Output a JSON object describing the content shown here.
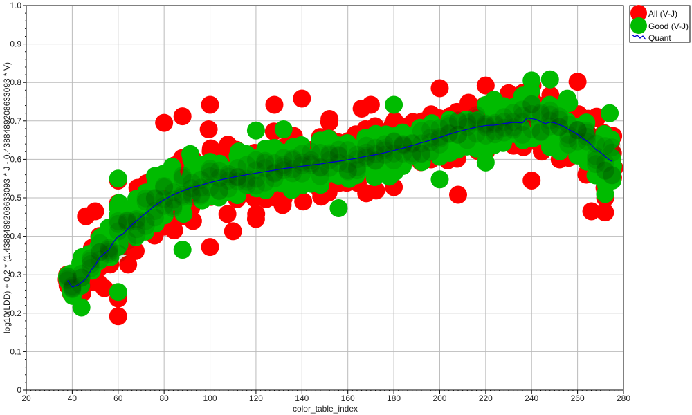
{
  "chart_data": {
    "type": "scatter",
    "xlabel": "color_table_index",
    "ylabel": "log10(LDD) + 0.2 * (1.4388489208633093 * J - 0.4388489208633093 * V)",
    "xlim": [
      20,
      280
    ],
    "ylim": [
      0,
      1
    ],
    "x_ticks": [
      20,
      40,
      60,
      80,
      100,
      120,
      140,
      160,
      180,
      200,
      220,
      240,
      260,
      280
    ],
    "y_ticks": [
      0,
      0.1,
      0.2,
      0.3,
      0.4,
      0.5,
      0.6,
      0.7,
      0.8,
      0.9,
      1.0
    ],
    "x_tick_labels": [
      "20",
      "40",
      "60",
      "80",
      "100",
      "120",
      "140",
      "160",
      "180",
      "200",
      "220",
      "240",
      "260",
      "280"
    ],
    "y_tick_labels": [
      "0",
      "0.1",
      "0.2",
      "0.3",
      "0.4",
      "0.5",
      "0.6",
      "0.7",
      "0.8",
      "0.9",
      "1.0"
    ],
    "grid": true,
    "legend_position": "outside-top-right",
    "colors": {
      "all": "#ff0000",
      "good": "#00bb00",
      "quant": "#0000cc",
      "grid": "#bbbbbb"
    },
    "series": [
      {
        "name": "All (V-J)",
        "marker": "circle",
        "color": "#ff0000",
        "band_centers": {
          "x": [
            38,
            40,
            44,
            48,
            52,
            56,
            60,
            64,
            68,
            72,
            76,
            80,
            84,
            88,
            92,
            96,
            100,
            104,
            108,
            112,
            116,
            120,
            124,
            128,
            132,
            136,
            140,
            144,
            148,
            152,
            156,
            160,
            164,
            168,
            172,
            176,
            180,
            184,
            188,
            192,
            196,
            200,
            204,
            208,
            212,
            216,
            220,
            224,
            228,
            232,
            236,
            240,
            244,
            248,
            252,
            256,
            260,
            264,
            268,
            272,
            275
          ],
          "y": [
            0.285,
            0.27,
            0.29,
            0.32,
            0.355,
            0.375,
            0.4,
            0.415,
            0.44,
            0.46,
            0.48,
            0.495,
            0.51,
            0.52,
            0.53,
            0.535,
            0.54,
            0.548,
            0.553,
            0.558,
            0.562,
            0.565,
            0.57,
            0.573,
            0.576,
            0.579,
            0.582,
            0.585,
            0.588,
            0.592,
            0.595,
            0.599,
            0.603,
            0.608,
            0.612,
            0.617,
            0.622,
            0.628,
            0.635,
            0.642,
            0.65,
            0.657,
            0.665,
            0.672,
            0.678,
            0.684,
            0.688,
            0.69,
            0.694,
            0.697,
            0.7,
            0.705,
            0.7,
            0.695,
            0.69,
            0.675,
            0.66,
            0.645,
            0.625,
            0.605,
            0.595
          ],
          "spread": [
            0.03,
            0.06,
            0.08,
            0.09,
            0.1,
            0.11,
            0.13,
            0.13,
            0.13,
            0.13,
            0.13,
            0.14,
            0.14,
            0.14,
            0.14,
            0.15,
            0.15,
            0.13,
            0.13,
            0.12,
            0.12,
            0.12,
            0.12,
            0.13,
            0.12,
            0.12,
            0.12,
            0.12,
            0.12,
            0.12,
            0.11,
            0.11,
            0.11,
            0.11,
            0.11,
            0.11,
            0.1,
            0.1,
            0.1,
            0.1,
            0.1,
            0.1,
            0.1,
            0.1,
            0.1,
            0.1,
            0.1,
            0.1,
            0.1,
            0.1,
            0.12,
            0.13,
            0.13,
            0.13,
            0.13,
            0.14,
            0.14,
            0.14,
            0.13,
            0.13,
            0.12
          ]
        },
        "outliers": [
          {
            "x": 60,
            "y": 0.192
          },
          {
            "x": 60,
            "y": 0.238
          },
          {
            "x": 60,
            "y": 0.545
          },
          {
            "x": 54,
            "y": 0.265
          },
          {
            "x": 80,
            "y": 0.695
          },
          {
            "x": 88,
            "y": 0.712
          },
          {
            "x": 100,
            "y": 0.742
          },
          {
            "x": 100,
            "y": 0.372
          },
          {
            "x": 110,
            "y": 0.413
          },
          {
            "x": 120,
            "y": 0.445
          },
          {
            "x": 128,
            "y": 0.742
          },
          {
            "x": 140,
            "y": 0.758
          },
          {
            "x": 152,
            "y": 0.705
          },
          {
            "x": 166,
            "y": 0.732
          },
          {
            "x": 170,
            "y": 0.742
          },
          {
            "x": 168,
            "y": 0.512
          },
          {
            "x": 180,
            "y": 0.528
          },
          {
            "x": 200,
            "y": 0.785
          },
          {
            "x": 208,
            "y": 0.508
          },
          {
            "x": 220,
            "y": 0.792
          },
          {
            "x": 230,
            "y": 0.772
          },
          {
            "x": 240,
            "y": 0.545
          },
          {
            "x": 260,
            "y": 0.802
          },
          {
            "x": 266,
            "y": 0.465
          },
          {
            "x": 272,
            "y": 0.462
          },
          {
            "x": 276,
            "y": 0.578
          },
          {
            "x": 46,
            "y": 0.452
          },
          {
            "x": 50,
            "y": 0.465
          }
        ]
      },
      {
        "name": "Good (V-J)",
        "marker": "circle",
        "color": "#00bb00",
        "band_centers": {
          "x": [
            38,
            40,
            44,
            48,
            52,
            56,
            60,
            64,
            68,
            72,
            76,
            80,
            84,
            88,
            92,
            96,
            100,
            104,
            108,
            112,
            116,
            120,
            124,
            128,
            132,
            136,
            140,
            144,
            148,
            152,
            156,
            160,
            164,
            168,
            172,
            176,
            180,
            184,
            188,
            192,
            196,
            200,
            204,
            208,
            212,
            216,
            220,
            224,
            228,
            232,
            236,
            240,
            244,
            248,
            252,
            256,
            260,
            264,
            268,
            272,
            275
          ],
          "y": [
            0.29,
            0.275,
            0.295,
            0.325,
            0.355,
            0.375,
            0.4,
            0.42,
            0.44,
            0.46,
            0.48,
            0.495,
            0.51,
            0.52,
            0.53,
            0.535,
            0.54,
            0.548,
            0.553,
            0.558,
            0.562,
            0.565,
            0.57,
            0.573,
            0.576,
            0.579,
            0.582,
            0.585,
            0.588,
            0.592,
            0.595,
            0.599,
            0.603,
            0.608,
            0.612,
            0.617,
            0.622,
            0.628,
            0.635,
            0.642,
            0.65,
            0.657,
            0.665,
            0.672,
            0.678,
            0.684,
            0.688,
            0.69,
            0.694,
            0.697,
            0.7,
            0.705,
            0.7,
            0.695,
            0.69,
            0.675,
            0.66,
            0.645,
            0.625,
            0.605,
            0.595
          ],
          "spread": [
            0.02,
            0.05,
            0.07,
            0.07,
            0.08,
            0.09,
            0.12,
            0.1,
            0.1,
            0.1,
            0.1,
            0.1,
            0.1,
            0.1,
            0.1,
            0.1,
            0.1,
            0.09,
            0.09,
            0.09,
            0.09,
            0.09,
            0.09,
            0.09,
            0.09,
            0.09,
            0.09,
            0.09,
            0.09,
            0.09,
            0.08,
            0.08,
            0.08,
            0.08,
            0.08,
            0.08,
            0.09,
            0.08,
            0.08,
            0.08,
            0.08,
            0.09,
            0.08,
            0.08,
            0.08,
            0.08,
            0.08,
            0.08,
            0.07,
            0.07,
            0.1,
            0.11,
            0.1,
            0.1,
            0.1,
            0.1,
            0.1,
            0.1,
            0.1,
            0.1,
            0.11
          ]
        },
        "outliers": [
          {
            "x": 60,
            "y": 0.255
          },
          {
            "x": 60,
            "y": 0.55
          },
          {
            "x": 44,
            "y": 0.215
          },
          {
            "x": 88,
            "y": 0.365
          },
          {
            "x": 120,
            "y": 0.675
          },
          {
            "x": 132,
            "y": 0.678
          },
          {
            "x": 156,
            "y": 0.473
          },
          {
            "x": 180,
            "y": 0.742
          },
          {
            "x": 200,
            "y": 0.548
          },
          {
            "x": 220,
            "y": 0.592
          },
          {
            "x": 240,
            "y": 0.805
          },
          {
            "x": 248,
            "y": 0.808
          },
          {
            "x": 274,
            "y": 0.72
          },
          {
            "x": 272,
            "y": 0.51
          },
          {
            "x": 178,
            "y": 0.555
          }
        ]
      },
      {
        "name": "Quant",
        "marker": "line",
        "color": "#0000cc",
        "x": [
          38,
          40,
          42,
          44,
          46,
          48,
          50,
          52,
          54,
          56,
          58,
          60,
          62,
          64,
          66,
          68,
          70,
          72,
          74,
          76,
          78,
          80,
          84,
          88,
          92,
          96,
          100,
          104,
          108,
          112,
          116,
          120,
          124,
          128,
          132,
          136,
          140,
          144,
          148,
          152,
          156,
          160,
          164,
          168,
          172,
          176,
          180,
          184,
          188,
          192,
          196,
          200,
          204,
          208,
          212,
          216,
          220,
          224,
          228,
          232,
          236,
          238,
          240,
          242,
          244,
          246,
          248,
          250,
          252,
          254,
          256,
          258,
          260,
          262,
          264,
          266,
          268,
          270,
          272,
          274,
          275
        ],
        "y": [
          0.285,
          0.268,
          0.272,
          0.28,
          0.29,
          0.31,
          0.325,
          0.345,
          0.355,
          0.365,
          0.385,
          0.4,
          0.405,
          0.418,
          0.43,
          0.44,
          0.45,
          0.46,
          0.47,
          0.48,
          0.488,
          0.495,
          0.508,
          0.518,
          0.527,
          0.533,
          0.54,
          0.546,
          0.551,
          0.556,
          0.56,
          0.564,
          0.568,
          0.572,
          0.576,
          0.579,
          0.582,
          0.585,
          0.588,
          0.592,
          0.595,
          0.599,
          0.603,
          0.608,
          0.612,
          0.617,
          0.623,
          0.629,
          0.636,
          0.643,
          0.65,
          0.657,
          0.665,
          0.672,
          0.678,
          0.684,
          0.688,
          0.689,
          0.693,
          0.696,
          0.695,
          0.708,
          0.706,
          0.704,
          0.698,
          0.693,
          0.697,
          0.695,
          0.69,
          0.686,
          0.678,
          0.672,
          0.665,
          0.655,
          0.648,
          0.638,
          0.625,
          0.618,
          0.608,
          0.598,
          0.595
        ]
      }
    ]
  }
}
